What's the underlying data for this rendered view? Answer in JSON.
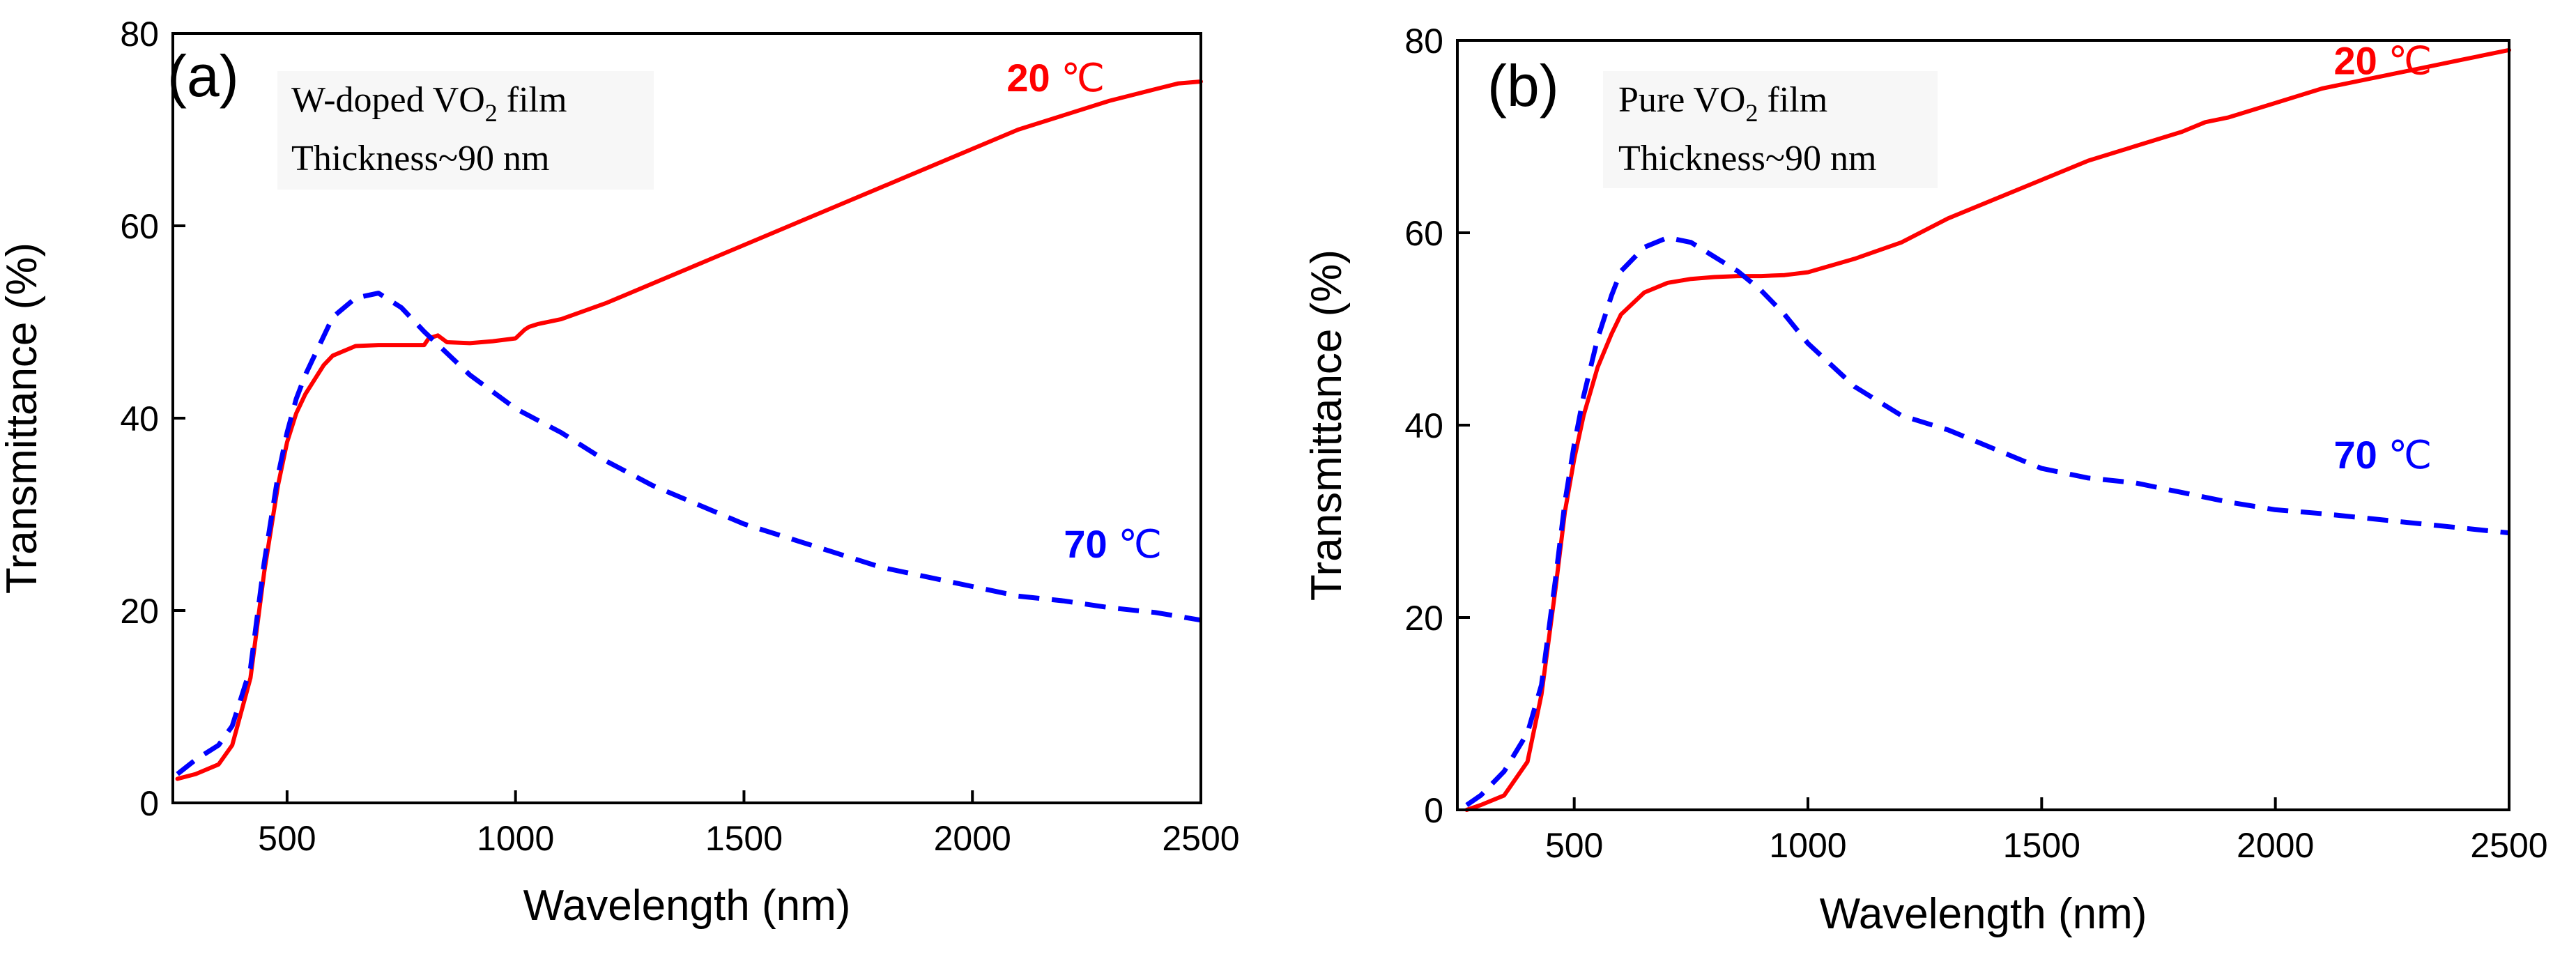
{
  "chart_data": [
    {
      "type": "line",
      "panel_label": "(a)",
      "annotation_lines": [
        {
          "base": "W-doped VO",
          "sub": "2",
          "tail": " film"
        },
        {
          "base": "Thickness~90 nm",
          "sub": "",
          "tail": ""
        }
      ],
      "xlabel": "Wavelength (nm)",
      "ylabel": "Transmittance (%)",
      "xlim": [
        250,
        2500
      ],
      "ylim": [
        0,
        80
      ],
      "xticks": [
        500,
        1000,
        1500,
        2000,
        2500
      ],
      "yticks": [
        0,
        20,
        40,
        60,
        80
      ],
      "series": [
        {
          "name": "20 ℃",
          "color": "#ff0000",
          "style": "solid",
          "x": [
            260,
            300,
            350,
            380,
            420,
            450,
            480,
            500,
            520,
            540,
            560,
            580,
            600,
            650,
            700,
            750,
            800,
            810,
            830,
            850,
            900,
            950,
            1000,
            1020,
            1030,
            1050,
            1100,
            1200,
            1300,
            1400,
            1500,
            1600,
            1700,
            1800,
            1900,
            2000,
            2100,
            2200,
            2300,
            2400,
            2450,
            2500
          ],
          "y": [
            2.5,
            3,
            4,
            6,
            13,
            24,
            33,
            37.5,
            40.5,
            42.5,
            44,
            45.5,
            46.5,
            47.5,
            47.6,
            47.6,
            47.6,
            48.3,
            48.6,
            47.9,
            47.8,
            48,
            48.3,
            49.2,
            49.5,
            49.8,
            50.3,
            52,
            54,
            56,
            58,
            60,
            62,
            64,
            66,
            68,
            70,
            71.5,
            73,
            74.2,
            74.8,
            75
          ]
        },
        {
          "name": "70 ℃",
          "color": "#0000ff",
          "style": "dashed",
          "x": [
            260,
            300,
            350,
            380,
            420,
            450,
            480,
            500,
            520,
            540,
            560,
            580,
            600,
            650,
            700,
            750,
            800,
            900,
            1000,
            1100,
            1200,
            1300,
            1400,
            1500,
            1600,
            1700,
            1800,
            1900,
            2000,
            2100,
            2200,
            2300,
            2400,
            2500
          ],
          "y": [
            3,
            4.5,
            6,
            8,
            14,
            25,
            34,
            38.5,
            42,
            44.5,
            46.5,
            48.5,
            50.5,
            52.5,
            53,
            51.5,
            49,
            44.5,
            41,
            38.5,
            35.5,
            33,
            31,
            29,
            27.5,
            26,
            24.5,
            23.5,
            22.5,
            21.5,
            21,
            20.3,
            19.8,
            19
          ]
        }
      ],
      "series_labels": [
        {
          "text": "20 ℃",
          "x": 2075,
          "y": 74
        },
        {
          "text": "70 ℃",
          "x": 2200,
          "y": 25.5
        }
      ]
    },
    {
      "type": "line",
      "panel_label": "(b)",
      "annotation_lines": [
        {
          "base": "Pure VO",
          "sub": "2",
          "tail": " film"
        },
        {
          "base": "Thickness~90 nm",
          "sub": "",
          "tail": ""
        }
      ],
      "xlabel": "Wavelength (nm)",
      "ylabel": "Transmittance (%)",
      "xlim": [
        250,
        2500
      ],
      "ylim": [
        0,
        80
      ],
      "xticks": [
        500,
        1000,
        1500,
        2000,
        2500
      ],
      "yticks": [
        0,
        20,
        40,
        60,
        80
      ],
      "series": [
        {
          "name": "20 ℃",
          "color": "#ff0000",
          "style": "solid",
          "x": [
            270,
            300,
            350,
            400,
            430,
            460,
            480,
            500,
            520,
            550,
            580,
            600,
            650,
            700,
            750,
            800,
            850,
            900,
            950,
            1000,
            1100,
            1200,
            1300,
            1400,
            1500,
            1600,
            1700,
            1800,
            1850,
            1900,
            2000,
            2100,
            2200,
            2300,
            2400,
            2500
          ],
          "y": [
            0,
            0.5,
            1.5,
            5,
            12,
            23,
            31,
            36.5,
            41,
            46,
            49.5,
            51.5,
            53.8,
            54.8,
            55.2,
            55.4,
            55.5,
            55.5,
            55.6,
            55.9,
            57.3,
            59,
            61.5,
            63.5,
            65.5,
            67.5,
            69,
            70.5,
            71.5,
            72,
            73.5,
            75,
            76,
            77,
            78,
            79
          ]
        },
        {
          "name": "70 ℃",
          "color": "#0000ff",
          "style": "dashed",
          "x": [
            270,
            300,
            350,
            400,
            430,
            460,
            480,
            500,
            520,
            550,
            580,
            600,
            650,
            700,
            750,
            800,
            850,
            900,
            950,
            1000,
            1100,
            1200,
            1300,
            1400,
            1500,
            1600,
            1700,
            1800,
            1900,
            2000,
            2100,
            2200,
            2300,
            2400,
            2500
          ],
          "y": [
            0.5,
            1.5,
            4,
            8,
            13,
            24,
            32,
            38,
            43,
            49,
            53.5,
            56,
            58.5,
            59.5,
            59,
            57.5,
            56,
            54,
            51.5,
            48.5,
            44,
            41,
            39.5,
            37.5,
            35.5,
            34.5,
            34,
            33,
            32,
            31.2,
            30.8,
            30.3,
            29.8,
            29.3,
            28.8
          ]
        }
      ],
      "series_labels": [
        {
          "text": "20 ℃",
          "x": 2125,
          "y": 76.5
        },
        {
          "text": "70 ℃",
          "x": 2125,
          "y": 35.5
        }
      ]
    }
  ]
}
